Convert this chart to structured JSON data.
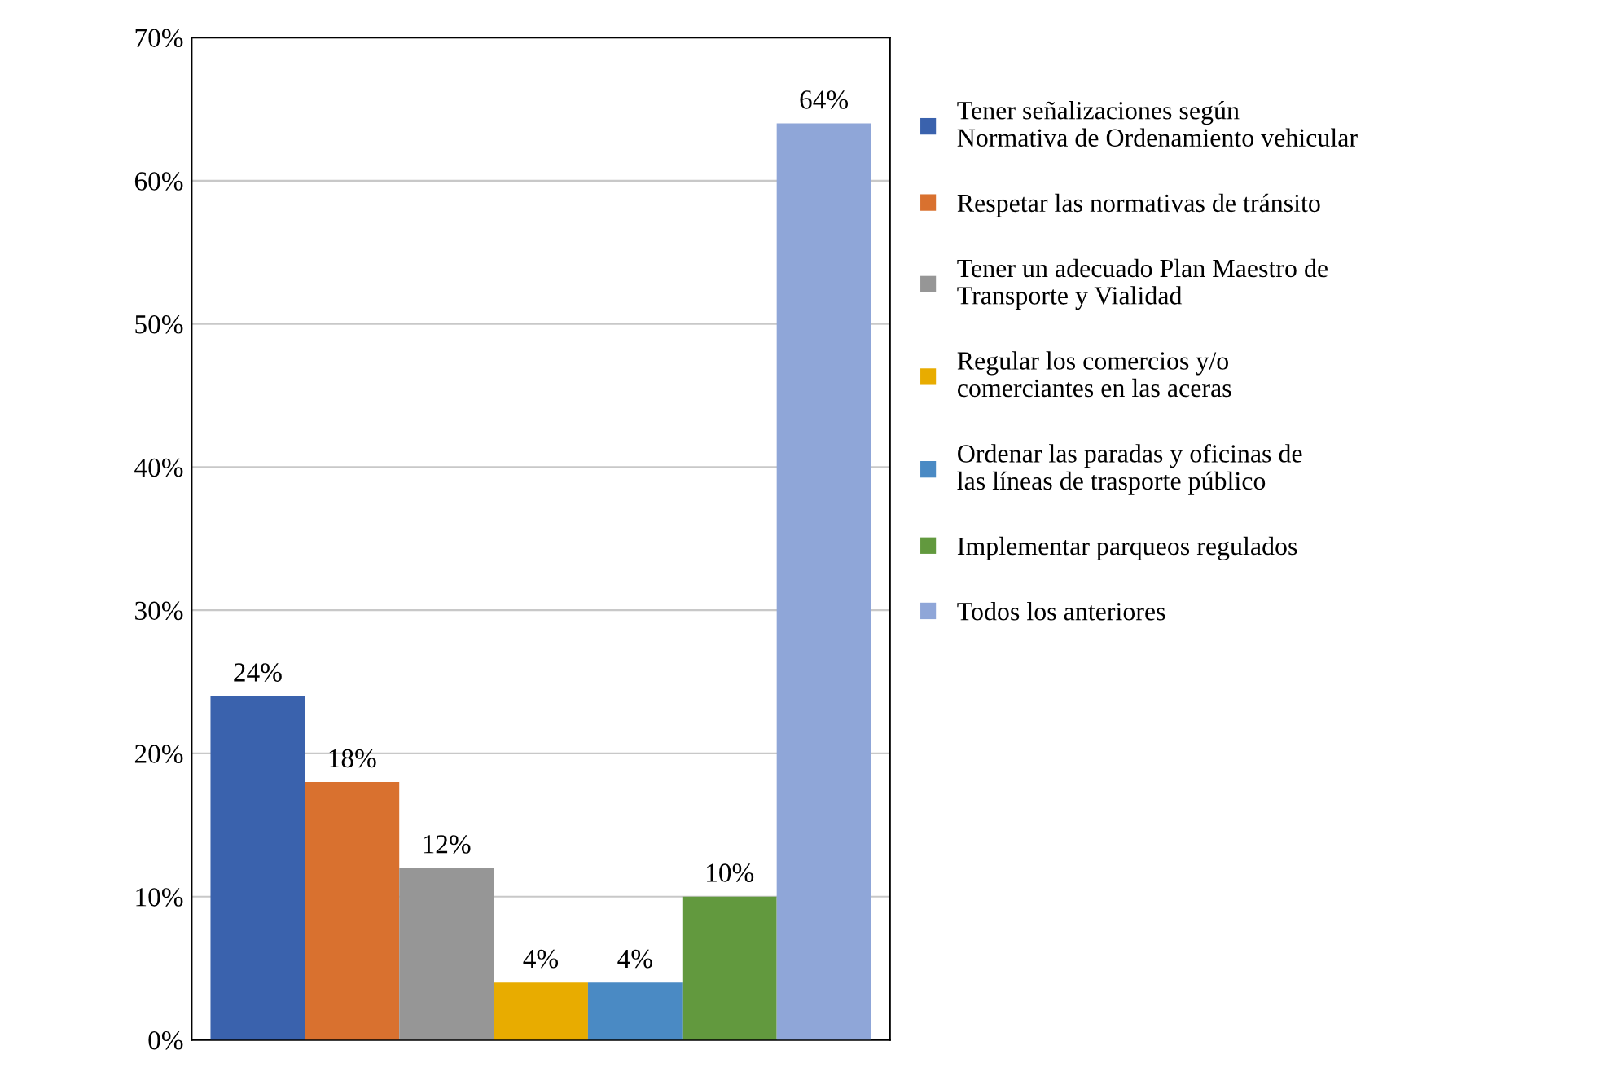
{
  "chart_data": {
    "type": "bar",
    "categories": [
      null
    ],
    "series": [
      {
        "name": "Tener señalizaciones según Normativa de Ordenamiento vehicular",
        "color": "#3a62ad",
        "values": [
          24
        ],
        "value_labels": [
          "24%"
        ]
      },
      {
        "name": "Respetar las normativas de tránsito",
        "color": "#d9712f",
        "values": [
          18
        ],
        "value_labels": [
          "18%"
        ]
      },
      {
        "name": "Tener un adecuado Plan Maestro de Transporte y Vialidad",
        "color": "#969696",
        "values": [
          12
        ],
        "value_labels": [
          "12%"
        ]
      },
      {
        "name": "Regular los comercios y/o comerciantes en las aceras",
        "color": "#e8ac00",
        "values": [
          4
        ],
        "value_labels": [
          "4%"
        ]
      },
      {
        "name": "Ordenar las paradas y oficinas de las líneas de trasporte público",
        "color": "#4a8ac4",
        "values": [
          4
        ],
        "value_labels": [
          "4%"
        ]
      },
      {
        "name": "Implementar parqueos regulados",
        "color": "#62993e",
        "values": [
          10
        ],
        "value_labels": [
          "10%"
        ]
      },
      {
        "name": "Todos los anteriores",
        "color": "#8fa6d8",
        "values": [
          64
        ],
        "value_labels": [
          "64%"
        ]
      }
    ],
    "ylim": [
      0,
      70
    ],
    "yticks": [
      {
        "value": 0,
        "label": "0%"
      },
      {
        "value": 10,
        "label": "10%"
      },
      {
        "value": 20,
        "label": "20%"
      },
      {
        "value": 30,
        "label": "30%"
      },
      {
        "value": 40,
        "label": "40%"
      },
      {
        "value": 50,
        "label": "50%"
      },
      {
        "value": 60,
        "label": "60%"
      },
      {
        "value": 70,
        "label": "70%"
      }
    ],
    "grid": "y",
    "legend": "right",
    "tick_labels": "y"
  }
}
